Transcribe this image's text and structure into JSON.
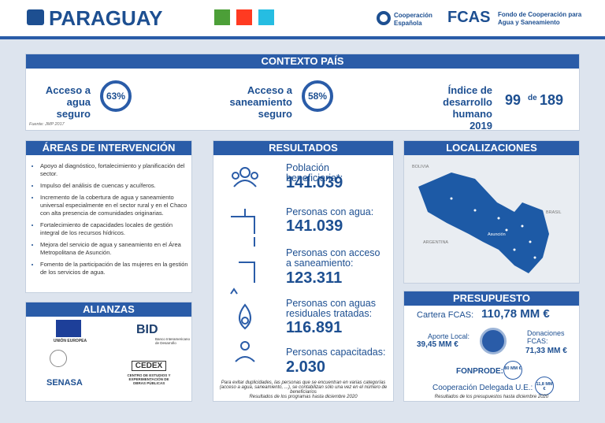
{
  "header": {
    "title": "PARAGUAY",
    "partner1": "Cooperación Española",
    "partner2_acronym": "FCAS",
    "partner2_name": "Fondo de Cooperación para Agua y Saneamiento"
  },
  "context": {
    "title": "CONTEXTO PAÍS",
    "items": [
      {
        "label": "Acceso a agua seguro",
        "value": "63%"
      },
      {
        "label": "Acceso a saneamiento seguro",
        "value": "58%"
      }
    ],
    "hdi": {
      "label": "Índice de desarrollo humano 2019",
      "rank": "99",
      "of": "de",
      "total": "189"
    },
    "source": "Fuente: JMP 2017"
  },
  "areas": {
    "title": "ÁREAS DE INTERVENCIÓN",
    "items": [
      "Apoyo al diagnóstico, fortalecimiento y planificación del sector.",
      "Impulso del análisis de cuencas y acuíferos.",
      "Incremento de la cobertura de agua y saneamiento universal especialmente en el sector rural y en el Chaco con alta presencia de comunidades originarias.",
      "Fortalecimiento de capacidades locales de gestión integral de los recursos hídricos.",
      "Mejora del servicio de agua y saneamiento en el Área Metropolitana de Asunción.",
      "Fomento de la participación de las mujeres en la gestión de los servicios de agua."
    ]
  },
  "results": {
    "title": "RESULTADOS",
    "items": [
      {
        "label": "Población beneficiaria*:",
        "value": "141.039"
      },
      {
        "label": "Personas con agua:",
        "value": "141.039"
      },
      {
        "label": "Personas con acceso a saneamiento:",
        "value": "123.311"
      },
      {
        "label": "Personas con aguas residuales tratadas:",
        "value": "116.891"
      },
      {
        "label": "Personas capacitadas:",
        "value": "2.030"
      }
    ],
    "note": "Para evitar duplicidades, las personas que se encuentran en varias categorías (acceso a agua, saneamiento, ...), se contabilizan sólo una vez en el número de beneficiarios",
    "period": "Resultados de los programas hasta diciembre 2020"
  },
  "locations": {
    "title": "LOCALIZACIONES",
    "labels": [
      "BOLIVIA",
      "BRASIL",
      "ARGENTINA",
      "Asunción"
    ]
  },
  "alliances": {
    "title": "ALIANZAS",
    "partners": [
      "UNIÓN EUROPEA",
      "BID",
      "Banco Interamericano de Desarrollo",
      "SENASA",
      "CEDEX",
      "CENTRO DE ESTUDIOS Y EXPERIMENTACIÓN DE OBRAS PÚBLICAS"
    ]
  },
  "budget": {
    "title": "PRESUPUESTO",
    "portfolio_label": "Cartera FCAS:",
    "portfolio_value": "110,78 MM €",
    "local_label": "Aporte Local:",
    "local_value": "39,45 MM €",
    "donation_label": "Donaciones FCAS:",
    "donation_value": "71,33 MM €",
    "fonprode_label": "FONPRODE:",
    "fonprode_value": "80 MM €",
    "eu_label": "Cooperación Delegada U.E.:",
    "eu_value": "11,8 MM €",
    "period": "Resultados de los presupuestos hasta diciembre 2020"
  }
}
